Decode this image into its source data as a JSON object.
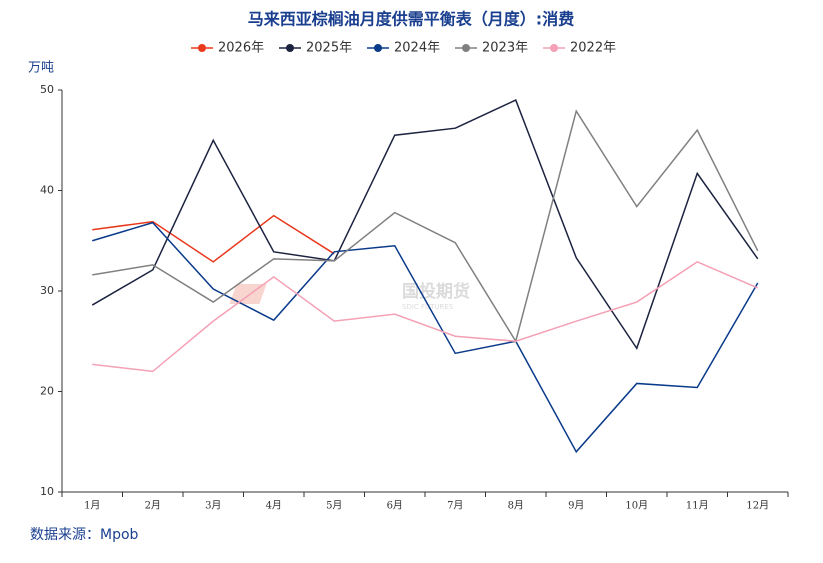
{
  "chart_data": {
    "type": "line",
    "title": "马来西亚棕榈油月度供需平衡表（月度）:消费",
    "y_label": "万吨",
    "source": "数据来源：Mpob",
    "watermark": {
      "name": "国投期货",
      "subtitle": "SDIC FUTURES"
    },
    "categories": [
      "1月",
      "2月",
      "3月",
      "4月",
      "5月",
      "6月",
      "7月",
      "8月",
      "9月",
      "10月",
      "11月",
      "12月"
    ],
    "series": [
      {
        "name": "2026年",
        "color": "#e8391d",
        "values": [
          36.1,
          36.9,
          32.9,
          37.5,
          33.7,
          null,
          null,
          null,
          null,
          null,
          null,
          null
        ]
      },
      {
        "name": "2025年",
        "color": "#1c2340",
        "values": [
          28.6,
          32.1,
          45.0,
          33.9,
          33.0,
          45.5,
          46.2,
          49.0,
          33.3,
          24.3,
          41.7,
          33.2
        ]
      },
      {
        "name": "2024年",
        "color": "#0a3a8a",
        "values": [
          35.0,
          36.8,
          30.2,
          27.1,
          33.9,
          34.5,
          23.8,
          25.0,
          14.0,
          20.8,
          20.4,
          30.8
        ]
      },
      {
        "name": "2023年",
        "color": "#808080",
        "values": [
          31.6,
          32.6,
          28.9,
          33.2,
          33.0,
          37.8,
          34.8,
          25.0,
          47.9,
          38.4,
          46.0,
          34.0
        ]
      },
      {
        "name": "2022年",
        "color": "#f4a0b5",
        "values": [
          22.7,
          22.0,
          27.0,
          31.4,
          27.0,
          27.7,
          25.5,
          25.0,
          27.0,
          28.9,
          32.9,
          30.3
        ]
      }
    ],
    "ylim": [
      10,
      50
    ],
    "yticks": [
      10,
      20,
      30,
      40,
      50
    ],
    "grid": false
  }
}
